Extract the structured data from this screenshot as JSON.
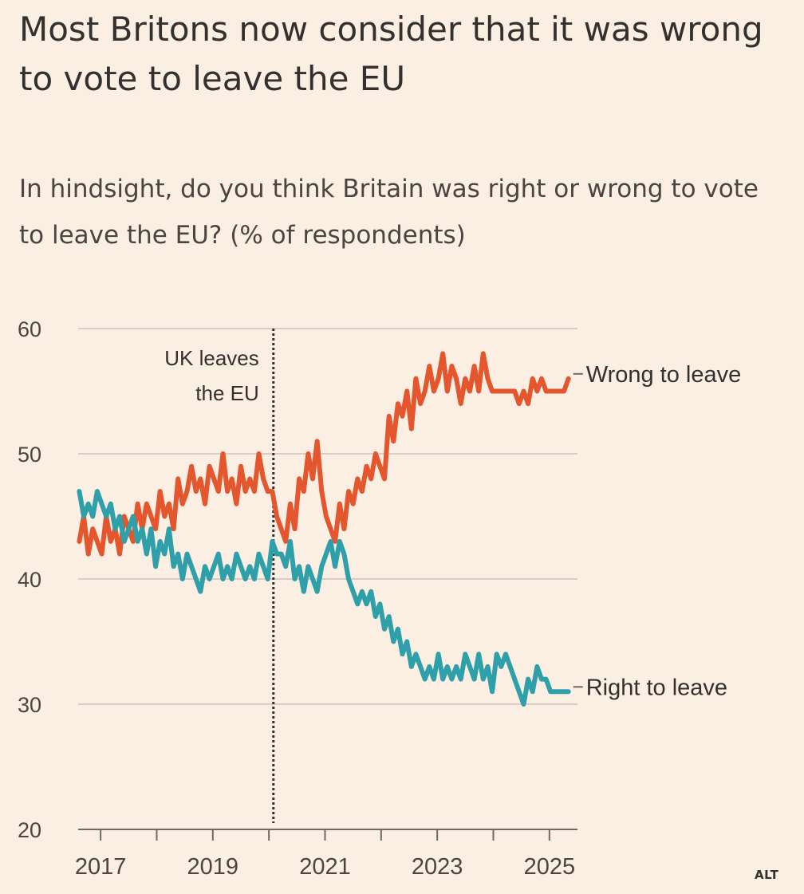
{
  "header": {
    "title": "Most Britons now consider that it was wrong to vote to leave the EU",
    "subtitle": "In hindsight, do you think Britain was right or wrong to vote to leave the EU? (% of respondents)"
  },
  "annotation": {
    "line1": "UK leaves",
    "line2": "the EU",
    "date": 2020.08
  },
  "badge": "ALT",
  "colors": {
    "wrong": "#e4572e",
    "right": "#2f9fa9",
    "grid": "#d9cec5",
    "axis": "#6f6964",
    "text": "#33302e"
  },
  "chart_data": {
    "type": "line",
    "title": "Most Britons now consider that it was wrong to vote to leave the EU",
    "subtitle": "In hindsight, do you think Britain was right or wrong to vote to leave the EU? (% of respondents)",
    "xlabel": "",
    "ylabel": "",
    "xlim": [
      2016.6,
      2025.5
    ],
    "ylim": [
      20,
      60
    ],
    "yticks": [
      20,
      30,
      40,
      50,
      60
    ],
    "xticks": [
      2017,
      2019,
      2021,
      2023,
      2025
    ],
    "xtick_labels": [
      "2017",
      "2019",
      "2021",
      "2023",
      "2025"
    ],
    "minor_xticks": [
      2017,
      2018,
      2019,
      2020,
      2021,
      2022,
      2023,
      2024,
      2025
    ],
    "grid": true,
    "legend": "direct labels at line ends",
    "series": [
      {
        "name": "Wrong to leave",
        "x": [
          2016.62,
          2016.7,
          2016.78,
          2016.86,
          2016.94,
          2017.02,
          2017.1,
          2017.18,
          2017.26,
          2017.34,
          2017.42,
          2017.5,
          2017.58,
          2017.66,
          2017.74,
          2017.82,
          2017.9,
          2017.98,
          2018.06,
          2018.14,
          2018.22,
          2018.3,
          2018.38,
          2018.46,
          2018.54,
          2018.62,
          2018.7,
          2018.78,
          2018.86,
          2018.94,
          2019.02,
          2019.1,
          2019.18,
          2019.26,
          2019.34,
          2019.42,
          2019.5,
          2019.58,
          2019.66,
          2019.74,
          2019.82,
          2019.9,
          2019.98,
          2020.06,
          2020.14,
          2020.22,
          2020.3,
          2020.38,
          2020.46,
          2020.54,
          2020.62,
          2020.7,
          2020.78,
          2020.86,
          2020.94,
          2021.02,
          2021.1,
          2021.18,
          2021.26,
          2021.34,
          2021.42,
          2021.5,
          2021.58,
          2021.66,
          2021.74,
          2021.82,
          2021.9,
          2021.98,
          2022.06,
          2022.14,
          2022.22,
          2022.3,
          2022.38,
          2022.46,
          2022.54,
          2022.62,
          2022.7,
          2022.78,
          2022.86,
          2022.94,
          2023.02,
          2023.1,
          2023.18,
          2023.26,
          2023.34,
          2023.42,
          2023.5,
          2023.58,
          2023.66,
          2023.74,
          2023.82,
          2023.9,
          2023.98,
          2024.06,
          2024.14,
          2024.22,
          2024.3,
          2024.38,
          2024.46,
          2024.54,
          2024.62,
          2024.7,
          2024.78,
          2024.86,
          2024.94,
          2025.02,
          2025.1,
          2025.18,
          2025.26,
          2025.34
        ],
        "values": [
          43,
          45,
          42,
          44,
          43,
          42,
          45,
          43,
          44,
          42,
          45,
          44,
          43,
          46,
          44,
          46,
          45,
          44,
          47,
          45,
          46,
          44,
          48,
          46,
          47,
          49,
          47,
          48,
          46,
          49,
          48,
          47,
          50,
          47,
          48,
          46,
          49,
          47,
          48,
          47,
          50,
          48,
          47,
          47,
          45,
          44,
          43,
          46,
          44,
          48,
          47,
          50,
          48,
          51,
          47,
          45,
          44,
          43,
          46,
          44,
          47,
          46,
          48,
          47,
          49,
          48,
          50,
          49,
          48,
          53,
          51,
          54,
          53,
          55,
          52,
          56,
          54,
          55,
          57,
          55,
          56,
          58,
          55,
          57,
          56,
          54,
          56,
          55,
          57,
          55,
          58,
          56,
          55,
          55,
          55,
          55,
          55,
          55,
          54,
          55,
          54,
          56,
          55,
          56,
          55,
          55,
          55,
          55,
          55,
          56
        ]
      },
      {
        "name": "Right to leave",
        "x": [
          2016.62,
          2016.7,
          2016.78,
          2016.86,
          2016.94,
          2017.02,
          2017.1,
          2017.18,
          2017.26,
          2017.34,
          2017.42,
          2017.5,
          2017.58,
          2017.66,
          2017.74,
          2017.82,
          2017.9,
          2017.98,
          2018.06,
          2018.14,
          2018.22,
          2018.3,
          2018.38,
          2018.46,
          2018.54,
          2018.62,
          2018.7,
          2018.78,
          2018.86,
          2018.94,
          2019.02,
          2019.1,
          2019.18,
          2019.26,
          2019.34,
          2019.42,
          2019.5,
          2019.58,
          2019.66,
          2019.74,
          2019.82,
          2019.9,
          2019.98,
          2020.06,
          2020.14,
          2020.22,
          2020.3,
          2020.38,
          2020.46,
          2020.54,
          2020.62,
          2020.7,
          2020.78,
          2020.86,
          2020.94,
          2021.02,
          2021.1,
          2021.18,
          2021.26,
          2021.34,
          2021.42,
          2021.5,
          2021.58,
          2021.66,
          2021.74,
          2021.82,
          2021.9,
          2021.98,
          2022.06,
          2022.14,
          2022.22,
          2022.3,
          2022.38,
          2022.46,
          2022.54,
          2022.62,
          2022.7,
          2022.78,
          2022.86,
          2022.94,
          2023.02,
          2023.1,
          2023.18,
          2023.26,
          2023.34,
          2023.42,
          2023.5,
          2023.58,
          2023.66,
          2023.74,
          2023.82,
          2023.9,
          2023.98,
          2024.06,
          2024.14,
          2024.22,
          2024.3,
          2024.38,
          2024.46,
          2024.54,
          2024.62,
          2024.7,
          2024.78,
          2024.86,
          2024.94,
          2025.02,
          2025.1,
          2025.18,
          2025.26,
          2025.34
        ],
        "values": [
          47,
          45,
          46,
          45,
          47,
          46,
          45,
          46,
          44,
          45,
          43,
          44,
          45,
          43,
          44,
          42,
          44,
          41,
          43,
          42,
          44,
          41,
          42,
          40,
          42,
          41,
          40,
          39,
          41,
          40,
          41,
          42,
          40,
          41,
          40,
          42,
          41,
          40,
          41,
          40,
          42,
          41,
          40,
          43,
          42,
          42,
          41,
          43,
          40,
          41,
          39,
          41,
          40,
          39,
          41,
          42,
          43,
          41,
          43,
          42,
          40,
          39,
          38,
          39,
          38,
          39,
          37,
          38,
          36,
          37,
          35,
          36,
          34,
          35,
          33,
          34,
          33,
          32,
          33,
          32,
          34,
          32,
          33,
          32,
          33,
          32,
          34,
          33,
          32,
          34,
          32,
          33,
          31,
          34,
          33,
          34,
          33,
          32,
          31,
          30,
          32,
          31,
          33,
          32,
          32,
          31,
          31,
          31,
          31,
          31
        ]
      }
    ]
  }
}
